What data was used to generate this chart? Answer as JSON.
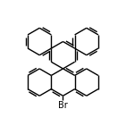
{
  "bg_color": "#ffffff",
  "line_color": "#000000",
  "line_width": 1.0,
  "text_color": "#000000",
  "br_label": "Br",
  "br_fontsize": 7.0,
  "fig_width": 1.41,
  "fig_height": 1.41,
  "dpi": 100
}
